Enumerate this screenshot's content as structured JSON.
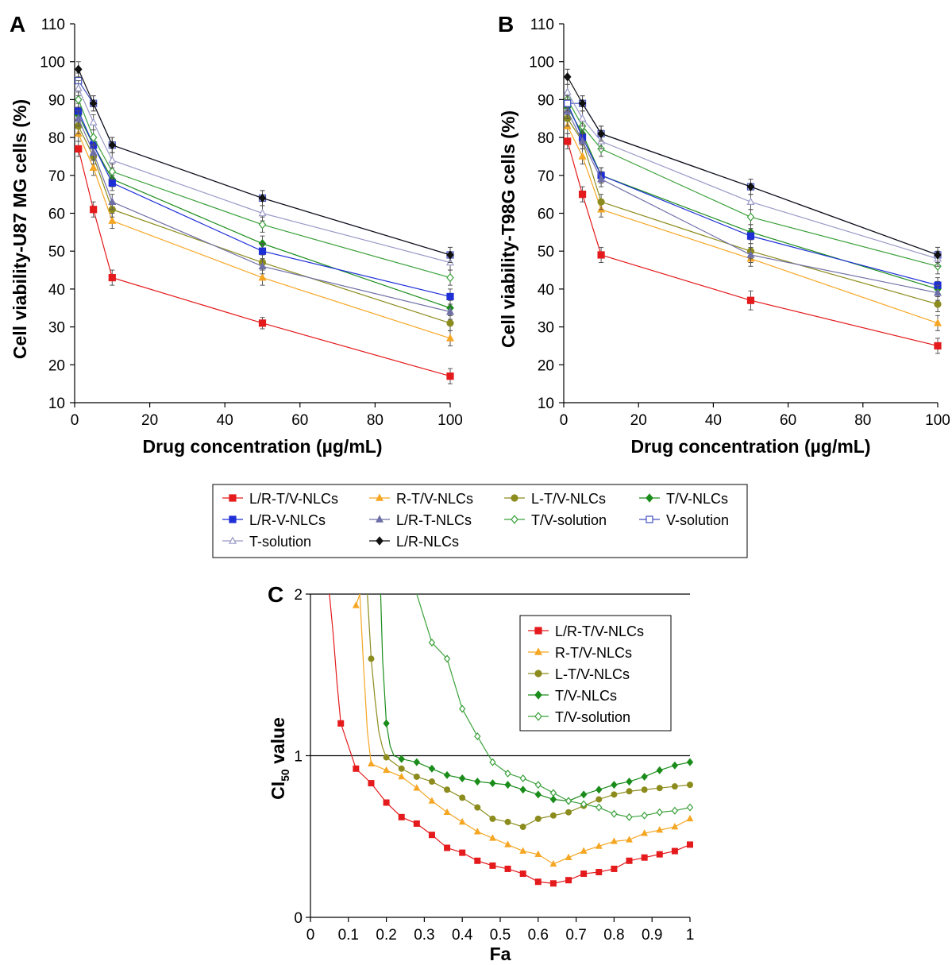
{
  "legend_main": [
    {
      "name": "L/R-T/V-NLCs",
      "color": "#e41a1c",
      "marker": "square-filled"
    },
    {
      "name": "R-T/V-NLCs",
      "color": "#f5a623",
      "marker": "triangle-filled"
    },
    {
      "name": "L-T/V-NLCs",
      "color": "#8c8c1e",
      "marker": "circle-filled"
    },
    {
      "name": "T/V-NLCs",
      "color": "#1a8c1a",
      "marker": "diamond-filled"
    },
    {
      "name": "L/R-V-NLCs",
      "color": "#1f2fd6",
      "marker": "square-filled"
    },
    {
      "name": "L/R-T-NLCs",
      "color": "#6f6fa8",
      "marker": "triangle-filled"
    },
    {
      "name": "T/V-solution",
      "color": "#3aa03a",
      "marker": "diamond-open"
    },
    {
      "name": "V-solution",
      "color": "#4050c0",
      "marker": "square-open"
    },
    {
      "name": "T-solution",
      "color": "#9a9ac8",
      "marker": "triangle-open"
    },
    {
      "name": "L/R-NLCs",
      "color": "#111111",
      "marker": "diamond-filled"
    }
  ],
  "chart_data": [
    {
      "panel": "A",
      "type": "line",
      "xlabel": "Drug concentration (µg/mL)",
      "ylabel": "Cell viability-U87 MG cells (%)",
      "xlim": [
        0,
        100
      ],
      "ylim": [
        10,
        110
      ],
      "xticks": [
        0,
        20,
        40,
        60,
        80,
        100
      ],
      "yticks": [
        10,
        20,
        30,
        40,
        50,
        60,
        70,
        80,
        90,
        100,
        110
      ],
      "x": [
        1,
        5,
        10,
        50,
        100
      ],
      "series": [
        {
          "name": "L/R-T/V-NLCs",
          "values": [
            77,
            61,
            43,
            31,
            17
          ],
          "err": [
            2,
            2,
            2,
            1.5,
            2
          ]
        },
        {
          "name": "R-T/V-NLCs",
          "values": [
            81,
            72,
            58,
            43,
            27
          ],
          "err": [
            2,
            2,
            2,
            2,
            2
          ]
        },
        {
          "name": "L-T/V-NLCs",
          "values": [
            83,
            75,
            61,
            47,
            31
          ],
          "err": [
            2,
            2,
            2,
            2,
            2
          ]
        },
        {
          "name": "T/V-NLCs",
          "values": [
            86,
            78,
            69,
            52,
            35
          ],
          "err": [
            2,
            2,
            2,
            2,
            2
          ]
        },
        {
          "name": "L/R-V-NLCs",
          "values": [
            87,
            78,
            68,
            50,
            38
          ],
          "err": [
            2,
            2,
            2,
            2,
            2
          ]
        },
        {
          "name": "L/R-T-NLCs",
          "values": [
            85,
            76,
            63,
            46,
            34
          ],
          "err": [
            2,
            2,
            2,
            2,
            2
          ]
        },
        {
          "name": "T/V-solution",
          "values": [
            90,
            80,
            71,
            57,
            43
          ],
          "err": [
            2,
            2,
            2,
            2,
            2
          ]
        },
        {
          "name": "V-solution",
          "values": [
            95,
            89,
            78,
            64,
            49
          ],
          "err": [
            2,
            2,
            2,
            2,
            2
          ]
        },
        {
          "name": "T-solution",
          "values": [
            93,
            84,
            74,
            60,
            47
          ],
          "err": [
            2,
            2,
            2,
            2,
            2
          ]
        },
        {
          "name": "L/R-NLCs",
          "values": [
            98,
            89,
            78,
            64,
            49
          ],
          "err": [
            2,
            2,
            2,
            2,
            2
          ]
        }
      ]
    },
    {
      "panel": "B",
      "type": "line",
      "xlabel": "Drug concentration (µg/mL)",
      "ylabel": "Cell viability-T98G cells (%)",
      "xlim": [
        0,
        100
      ],
      "ylim": [
        10,
        110
      ],
      "xticks": [
        0,
        20,
        40,
        60,
        80,
        100
      ],
      "yticks": [
        10,
        20,
        30,
        40,
        50,
        60,
        70,
        80,
        90,
        100,
        110
      ],
      "x": [
        1,
        5,
        10,
        50,
        100
      ],
      "series": [
        {
          "name": "L/R-T/V-NLCs",
          "values": [
            79,
            65,
            49,
            37,
            25
          ],
          "err": [
            2,
            2,
            2,
            2.5,
            2
          ]
        },
        {
          "name": "R-T/V-NLCs",
          "values": [
            83,
            75,
            61,
            48,
            31
          ],
          "err": [
            2,
            2,
            2,
            2,
            2
          ]
        },
        {
          "name": "L-T/V-NLCs",
          "values": [
            85,
            79,
            63,
            50,
            36
          ],
          "err": [
            2,
            2,
            2,
            2,
            2
          ]
        },
        {
          "name": "T/V-NLCs",
          "values": [
            88,
            81,
            70,
            55,
            40
          ],
          "err": [
            2,
            2,
            2,
            2,
            2
          ]
        },
        {
          "name": "L/R-V-NLCs",
          "values": [
            89,
            80,
            70,
            54,
            41
          ],
          "err": [
            2,
            2,
            2,
            2,
            2
          ]
        },
        {
          "name": "L/R-T-NLCs",
          "values": [
            87,
            79,
            69,
            49,
            39
          ],
          "err": [
            2,
            2,
            2,
            2,
            2
          ]
        },
        {
          "name": "T/V-solution",
          "values": [
            90,
            83,
            77,
            59,
            46
          ],
          "err": [
            2,
            2,
            2,
            2,
            2
          ]
        },
        {
          "name": "V-solution",
          "values": [
            89,
            89,
            81,
            67,
            49
          ],
          "err": [
            2,
            2,
            2,
            2,
            2
          ]
        },
        {
          "name": "T-solution",
          "values": [
            92,
            85,
            79,
            63,
            48
          ],
          "err": [
            2,
            2,
            2,
            2,
            2
          ]
        },
        {
          "name": "L/R-NLCs",
          "values": [
            96,
            89,
            81,
            67,
            49
          ],
          "err": [
            2,
            2,
            2,
            2,
            2
          ]
        }
      ]
    },
    {
      "panel": "C",
      "type": "line",
      "xlabel": "Fa",
      "ylabel": "CI50 value",
      "xlim": [
        0,
        1
      ],
      "ylim": [
        0,
        2
      ],
      "xticks": [
        0,
        0.1,
        0.2,
        0.3,
        0.4,
        0.5,
        0.6,
        0.7,
        0.8,
        0.9,
        1
      ],
      "yticks": [
        0,
        1,
        2
      ],
      "hlines": [
        1,
        2
      ],
      "legend": [
        "L/R-T/V-NLCs",
        "R-T/V-NLCs",
        "L-T/V-NLCs",
        "T/V-NLCs",
        "T/V-solution"
      ],
      "series": [
        {
          "name": "L/R-T/V-NLCs",
          "x": [
            0.08,
            0.12,
            0.16,
            0.2,
            0.24,
            0.28,
            0.32,
            0.36,
            0.4,
            0.44,
            0.48,
            0.52,
            0.56,
            0.6,
            0.64,
            0.68,
            0.72,
            0.76,
            0.8,
            0.84,
            0.88,
            0.92,
            0.96,
            1.0
          ],
          "values": [
            1.2,
            0.92,
            0.83,
            0.71,
            0.62,
            0.58,
            0.51,
            0.43,
            0.4,
            0.35,
            0.32,
            0.3,
            0.27,
            0.22,
            0.21,
            0.23,
            0.27,
            0.28,
            0.3,
            0.35,
            0.37,
            0.39,
            0.41,
            0.45
          ],
          "curve": {
            "x": [
              0.05,
              0.06,
              0.07,
              0.08
            ],
            "values": [
              2.0,
              1.75,
              1.45,
              1.2
            ]
          }
        },
        {
          "name": "R-T/V-NLCs",
          "x": [
            0.12,
            0.16,
            0.2,
            0.24,
            0.28,
            0.32,
            0.36,
            0.4,
            0.44,
            0.48,
            0.52,
            0.56,
            0.6,
            0.64,
            0.68,
            0.72,
            0.76,
            0.8,
            0.84,
            0.88,
            0.92,
            0.96,
            1.0
          ],
          "values": [
            1.93,
            0.95,
            0.91,
            0.87,
            0.8,
            0.72,
            0.65,
            0.59,
            0.53,
            0.49,
            0.45,
            0.41,
            0.39,
            0.33,
            0.37,
            0.41,
            0.44,
            0.47,
            0.48,
            0.52,
            0.54,
            0.56,
            0.61
          ],
          "curve": {
            "x": [
              0.12,
              0.13,
              0.14,
              0.15,
              0.16
            ],
            "values": [
              1.93,
              2.0,
              1.55,
              1.15,
              0.95
            ]
          }
        },
        {
          "name": "L-T/V-NLCs",
          "x": [
            0.16,
            0.2,
            0.24,
            0.28,
            0.32,
            0.36,
            0.4,
            0.44,
            0.48,
            0.52,
            0.56,
            0.6,
            0.64,
            0.68,
            0.72,
            0.76,
            0.8,
            0.84,
            0.88,
            0.92,
            0.96,
            1.0
          ],
          "values": [
            1.6,
            0.99,
            0.92,
            0.87,
            0.84,
            0.79,
            0.74,
            0.68,
            0.61,
            0.59,
            0.56,
            0.61,
            0.63,
            0.65,
            0.69,
            0.73,
            0.76,
            0.78,
            0.79,
            0.8,
            0.81,
            0.82
          ],
          "curve": {
            "x": [
              0.15,
              0.16,
              0.17,
              0.18,
              0.19,
              0.2
            ],
            "values": [
              2.0,
              1.6,
              1.35,
              1.15,
              1.05,
              0.99
            ]
          }
        },
        {
          "name": "T/V-NLCs",
          "x": [
            0.2,
            0.24,
            0.28,
            0.32,
            0.36,
            0.4,
            0.44,
            0.48,
            0.52,
            0.56,
            0.6,
            0.64,
            0.68,
            0.72,
            0.76,
            0.8,
            0.84,
            0.88,
            0.92,
            0.96,
            1.0
          ],
          "values": [
            1.2,
            0.98,
            0.96,
            0.92,
            0.88,
            0.86,
            0.84,
            0.83,
            0.82,
            0.79,
            0.76,
            0.73,
            0.72,
            0.76,
            0.79,
            0.82,
            0.84,
            0.87,
            0.91,
            0.94,
            0.96
          ],
          "curve": {
            "x": [
              0.185,
              0.19,
              0.2,
              0.21,
              0.22,
              0.24
            ],
            "values": [
              2.0,
              1.6,
              1.2,
              1.06,
              1.0,
              0.98
            ]
          }
        },
        {
          "name": "T/V-solution",
          "x": [
            0.32,
            0.36,
            0.4,
            0.44,
            0.48,
            0.52,
            0.56,
            0.6,
            0.64,
            0.68,
            0.72,
            0.76,
            0.8,
            0.84,
            0.88,
            0.92,
            0.96,
            1.0
          ],
          "values": [
            1.7,
            1.6,
            1.29,
            1.12,
            0.96,
            0.89,
            0.86,
            0.82,
            0.77,
            0.72,
            0.7,
            0.68,
            0.64,
            0.62,
            0.63,
            0.65,
            0.66,
            0.68
          ],
          "curve": {
            "x": [
              0.28,
              0.3,
              0.32
            ],
            "values": [
              2.0,
              1.85,
              1.7
            ]
          }
        }
      ]
    }
  ]
}
